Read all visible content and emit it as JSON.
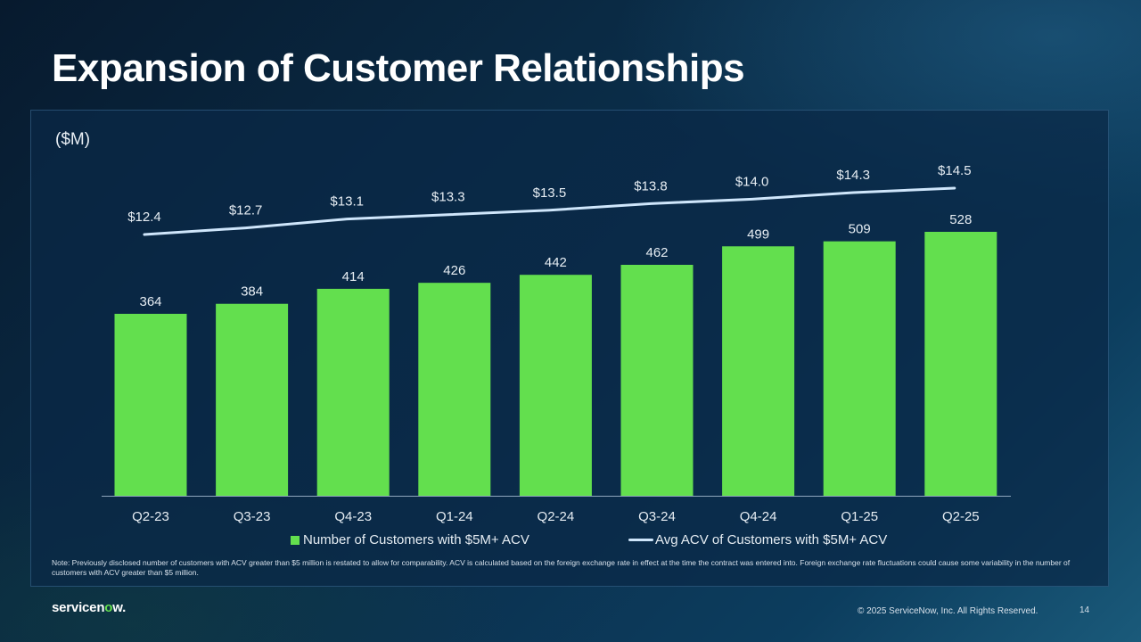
{
  "title": "Expansion of Customer Relationships",
  "unit_label": "($M)",
  "chart_data": {
    "type": "bar",
    "categories": [
      "Q2-23",
      "Q3-23",
      "Q4-23",
      "Q1-24",
      "Q2-24",
      "Q3-24",
      "Q4-24",
      "Q1-25",
      "Q2-25"
    ],
    "series": [
      {
        "name": "Number of Customers with $5M+ ACV",
        "type": "bar",
        "values": [
          364,
          384,
          414,
          426,
          442,
          462,
          499,
          509,
          528
        ],
        "labels": [
          "364",
          "384",
          "414",
          "426",
          "442",
          "462",
          "499",
          "509",
          "528"
        ],
        "color": "#63df4e"
      },
      {
        "name": "Avg ACV of Customers with $5M+ ACV",
        "type": "line",
        "values": [
          12.4,
          12.7,
          13.1,
          13.3,
          13.5,
          13.8,
          14.0,
          14.3,
          14.5
        ],
        "labels": [
          "$12.4",
          "$12.7",
          "$13.1",
          "$13.3",
          "$13.5",
          "$13.8",
          "$14.0",
          "$14.3",
          "$14.5"
        ],
        "color": "#cfe6fb"
      }
    ],
    "ylim_bar": [
      0,
      528
    ],
    "ylim_line": [
      12.4,
      14.5
    ]
  },
  "legend": {
    "bar_label": "Number of Customers with $5M+ ACV",
    "line_label": "Avg ACV of Customers with $5M+ ACV"
  },
  "note": "Note: Previously disclosed number of customers with ACV greater than $5 million is restated to allow for comparability. ACV is calculated based on the foreign exchange rate in effect at the time the contract was entered into. Foreign exchange rate fluctuations could cause some variability in the number of customers with ACV greater than $5 million.",
  "footer": {
    "logo_pre": "servicen",
    "logo_o": "o",
    "logo_post": "w.",
    "copyright": "© 2025 ServiceNow, Inc. All Rights Reserved.",
    "page_number": "14"
  }
}
